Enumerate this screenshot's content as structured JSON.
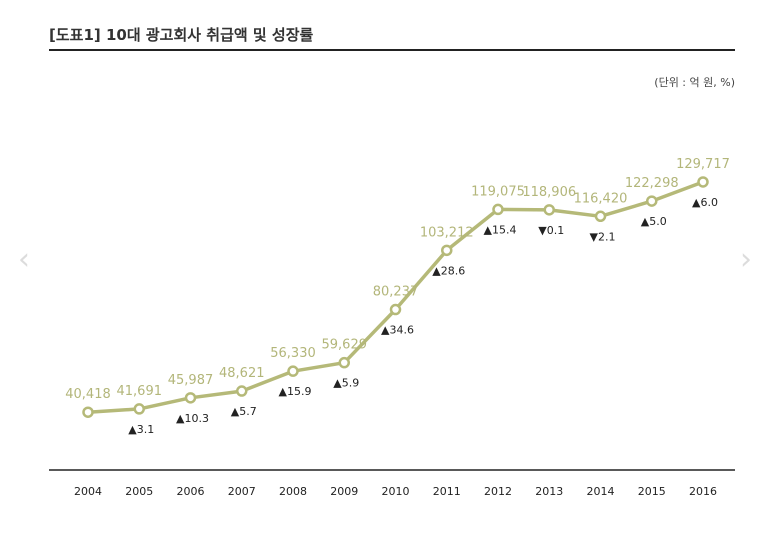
{
  "header": {
    "title": "[도표1] 10대 광고회사 취급액 및 성장률",
    "unit": "(단위 : 억 원, %)"
  },
  "nav": {
    "prev_icon": "chevron-left-icon",
    "next_icon": "chevron-right-icon"
  },
  "colors": {
    "line": "#b5b978",
    "marker_fill": "#ffffff",
    "value_text": "#b3b67a",
    "change_text": "#222222",
    "axis": "#222222"
  },
  "chart_data": {
    "type": "line",
    "title": "[도표1] 10대 광고회사 취급액 및 성장률",
    "unit": "(단위 : 억 원, %)",
    "x": [
      "2004",
      "2005",
      "2006",
      "2007",
      "2008",
      "2009",
      "2010",
      "2011",
      "2012",
      "2013",
      "2014",
      "2015",
      "2016"
    ],
    "series": [
      {
        "values": [
          40418,
          41691,
          45987,
          48621,
          56330,
          59629,
          80237,
          103212,
          119075,
          118906,
          116420,
          122298,
          129717
        ],
        "value_labels": [
          "40,418",
          "41,691",
          "45,987",
          "48,621",
          "56,330",
          "59,629",
          "80,237",
          "103,212",
          "119,075",
          "118,906",
          "116,420",
          "122,298",
          "129,717"
        ]
      }
    ],
    "growth_labels": [
      "",
      "▲3.1",
      "▲10.3",
      "▲5.7",
      "▲15.9",
      "▲5.9",
      "▲34.6",
      "▲28.6",
      "▲15.4",
      "▼0.1",
      "▼2.1",
      "▲5.0",
      "▲6.0"
    ],
    "ylim": [
      18000,
      146000
    ],
    "grid": false,
    "legend": "none"
  }
}
